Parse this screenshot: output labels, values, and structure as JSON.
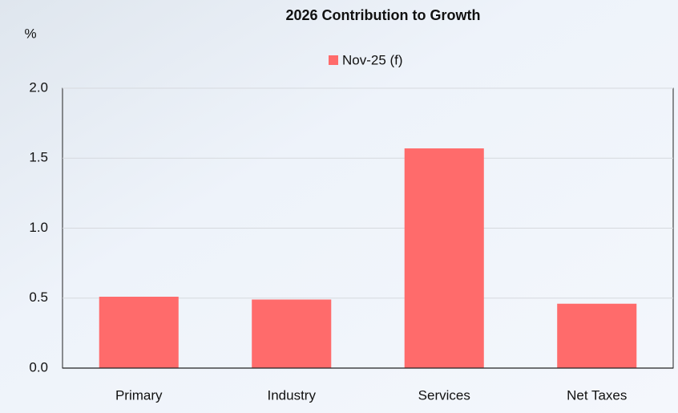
{
  "chart_data": {
    "type": "bar",
    "title": "2026 Contribution to Growth",
    "y_label": "%",
    "categories": [
      "Primary",
      "Industry",
      "Services",
      "Net Taxes"
    ],
    "series": [
      {
        "name": "Nov-25 (f)",
        "color": "#ff6b6b",
        "values": [
          0.51,
          0.49,
          1.57,
          0.46
        ]
      }
    ],
    "ylim": [
      0,
      2
    ],
    "yticks": [
      {
        "value": 0,
        "label": "0.0"
      },
      0.5,
      {
        "value": 1,
        "label": "1.0"
      },
      1.5,
      {
        "value": 2,
        "label": "2.0"
      }
    ],
    "grid": true,
    "legend": "top"
  }
}
